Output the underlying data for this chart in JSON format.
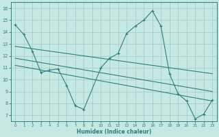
{
  "xlabel": "Humidex (Indice chaleur)",
  "xlim": [
    -0.5,
    23.5
  ],
  "ylim": [
    6.5,
    16.5
  ],
  "xticks": [
    0,
    1,
    2,
    3,
    4,
    5,
    6,
    7,
    8,
    9,
    10,
    11,
    12,
    13,
    14,
    15,
    16,
    17,
    18,
    19,
    20,
    21,
    22,
    23
  ],
  "yticks": [
    7,
    8,
    9,
    10,
    11,
    12,
    13,
    14,
    15,
    16
  ],
  "bg_color": "#c5e8e3",
  "line_color": "#2e7d7d",
  "grid_color": "#a0c8c4",
  "line1_x": [
    0,
    1,
    2,
    3,
    4,
    5,
    6,
    7,
    8,
    10,
    11,
    12,
    13,
    14,
    15,
    16,
    17,
    18,
    19,
    20,
    21,
    22,
    23
  ],
  "line1_y": [
    14.6,
    13.8,
    12.4,
    10.6,
    10.8,
    10.9,
    9.5,
    7.8,
    7.5,
    11.0,
    11.8,
    12.2,
    13.9,
    14.5,
    15.0,
    15.8,
    14.5,
    10.5,
    8.8,
    8.2,
    6.7,
    7.1,
    8.3
  ],
  "trend1_x": [
    0,
    23
  ],
  "trend1_y": [
    12.8,
    10.5
  ],
  "trend2_x": [
    0,
    23
  ],
  "trend2_y": [
    11.8,
    9.0
  ],
  "trend3_x": [
    0,
    23
  ],
  "trend3_y": [
    11.2,
    8.2
  ]
}
